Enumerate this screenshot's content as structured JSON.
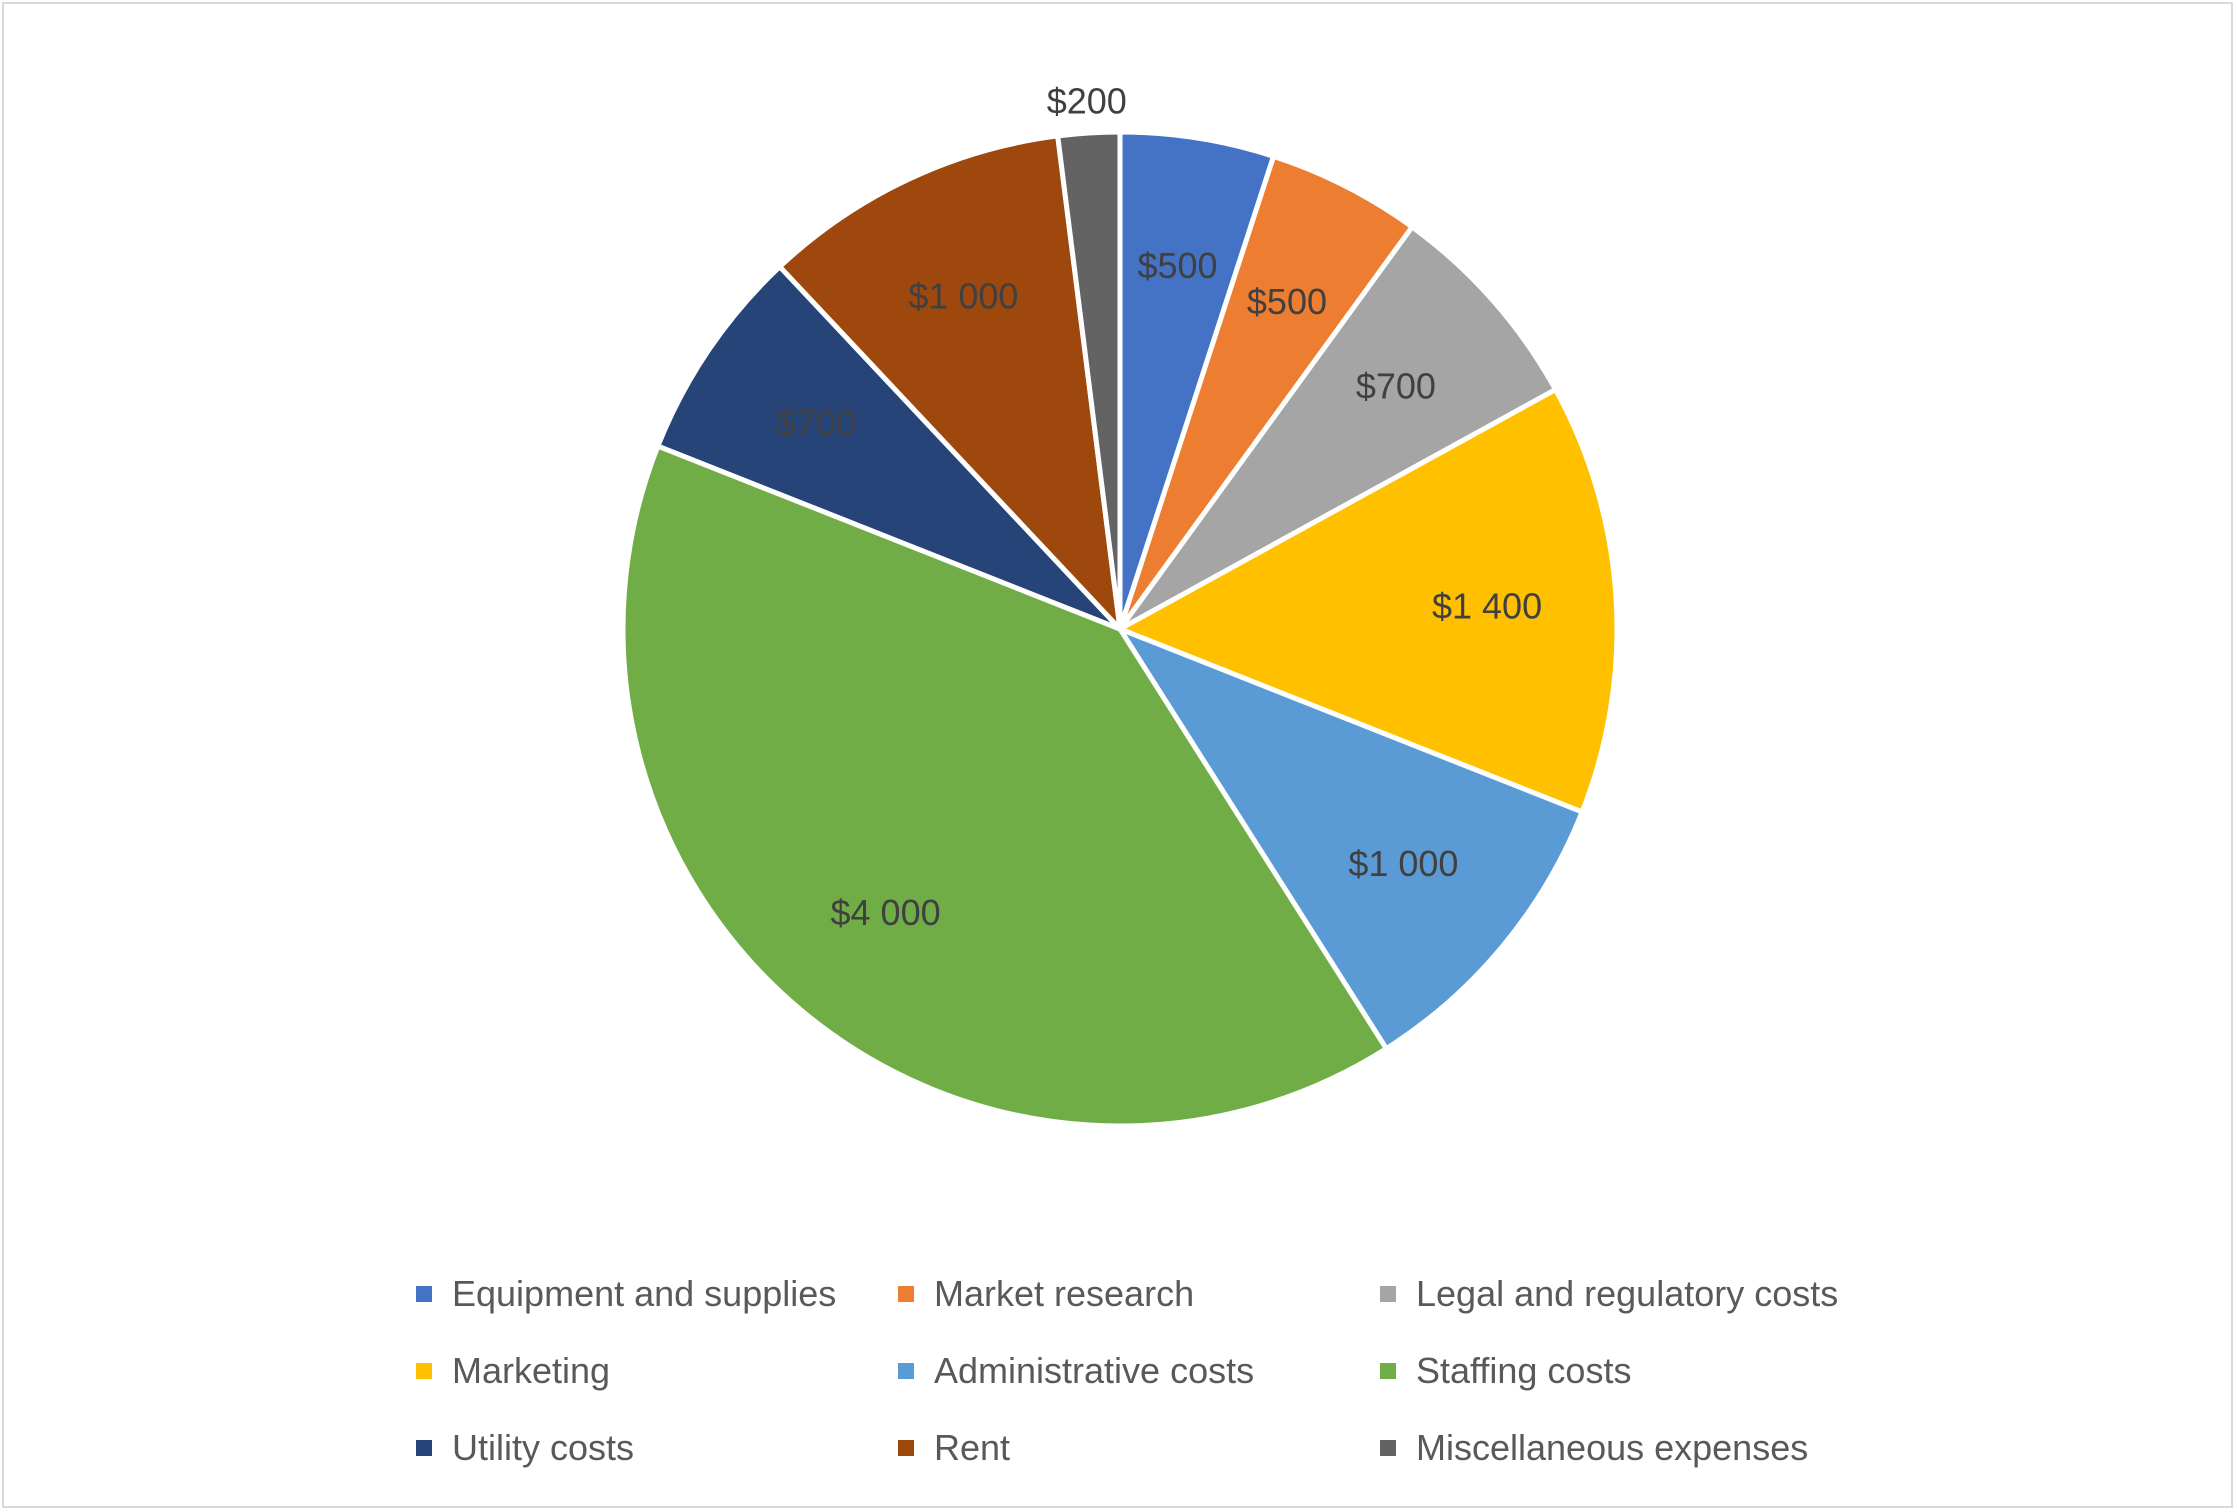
{
  "chart_data": {
    "type": "pie",
    "title": "",
    "start_angle_deg": 0,
    "direction": "clockwise",
    "legend_position": "bottom",
    "categories": [
      "Equipment and supplies",
      "Market research",
      "Legal and regulatory costs",
      "Marketing",
      "Administrative costs",
      "Staffing costs",
      "Utility costs",
      "Rent",
      "Miscellaneous expenses"
    ],
    "values": [
      500,
      500,
      700,
      1400,
      1000,
      4000,
      700,
      1000,
      200
    ],
    "value_labels": [
      "$500",
      "$500",
      "$700",
      "$1 400",
      "$1 000",
      "$4 000",
      "$700",
      "$1 000",
      "$200"
    ],
    "colors": [
      "#4472C4",
      "#ED7D31",
      "#A5A5A5",
      "#FFC000",
      "#5B9BD5",
      "#70AD47",
      "#264478",
      "#9E480E",
      "#636363"
    ]
  }
}
